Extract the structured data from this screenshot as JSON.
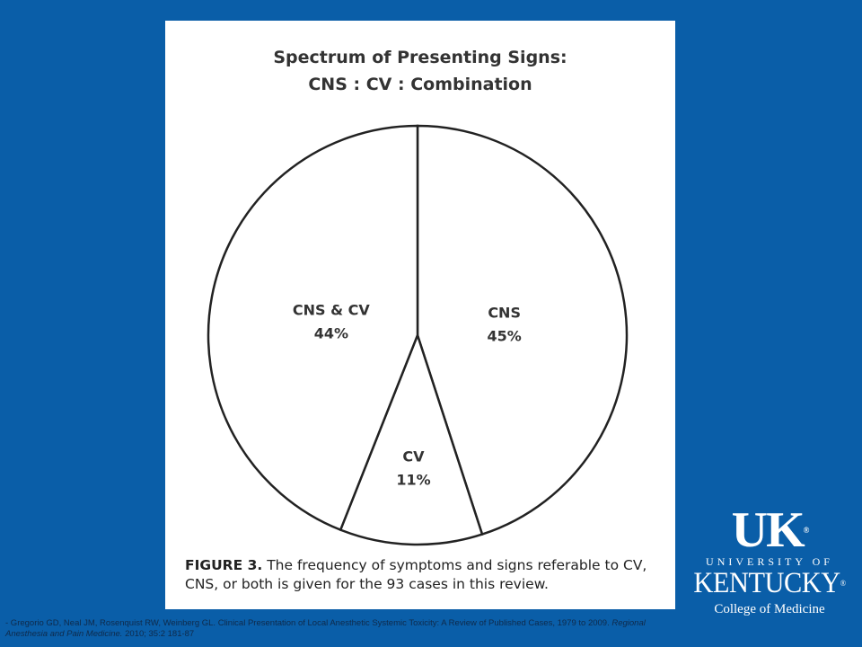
{
  "chart_data": {
    "type": "pie",
    "title_lines": [
      "Spectrum of Presenting Signs:",
      "CNS : CV : Combination"
    ],
    "slices": [
      {
        "label": "CNS",
        "percent_label": "45%",
        "value": 45
      },
      {
        "label": "CV",
        "percent_label": "11%",
        "value": 11
      },
      {
        "label": "CNS & CV",
        "percent_label": "44%",
        "value": 44
      }
    ],
    "legend": "none"
  },
  "caption": {
    "figure_label": "FIGURE 3.",
    "text": "The frequency of symptoms and signs referable to CV, CNS, or both is given for the 93 cases in this review."
  },
  "citation": {
    "authors": "- Gregorio GD, Neal JM, Rosenquist RW, Weinberg GL. Clinical Presentation of Local Anesthetic Systemic Toxicity: A Review of Published Cases, 1979 to 2009.",
    "journal": "Regional Anesthesia and Pain Medicine.",
    "details": "2010; 35:2 181-87"
  },
  "logo": {
    "uk": "UK",
    "university_of": "UNIVERSITY OF",
    "kentucky": "KENTUCKY",
    "college": "College of Medicine",
    "registered": "®"
  },
  "colors": {
    "background": "#0a5ea8",
    "panel": "#ffffff",
    "stroke": "#222222"
  }
}
